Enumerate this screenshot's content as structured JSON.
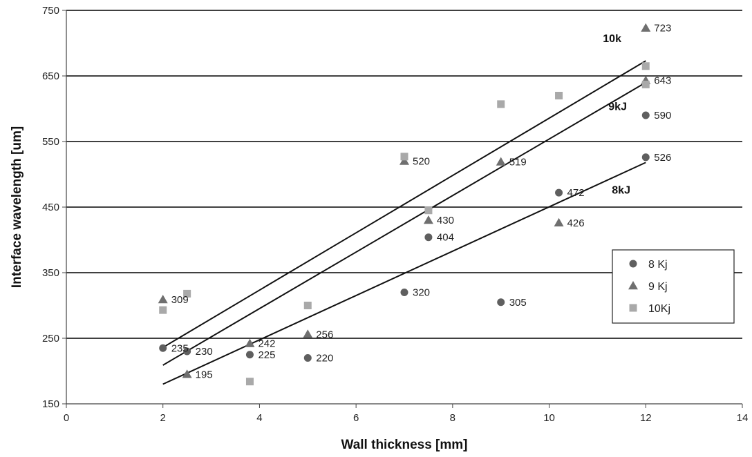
{
  "chart_data": {
    "type": "scatter",
    "xlabel": "Wall thickness [mm]",
    "ylabel": "Interface wavelength [um]",
    "xlim": [
      0,
      14
    ],
    "ylim": [
      150,
      750
    ],
    "xticks": [
      "0",
      "2",
      "4",
      "6",
      "8",
      "10",
      "12",
      "14"
    ],
    "yticks": [
      "150",
      "250",
      "350",
      "450",
      "550",
      "650",
      "750"
    ],
    "grid": "horizontal",
    "legend": {
      "position": "right",
      "entries": [
        "8 Kj",
        "9 Kj",
        "10Kj"
      ]
    },
    "series": [
      {
        "name": "8 Kj",
        "marker": "circle",
        "color": "#5f5f5f",
        "points": [
          {
            "x": 2,
            "y": 235,
            "label": "235"
          },
          {
            "x": 2.5,
            "y": 230,
            "label": "230"
          },
          {
            "x": 3.8,
            "y": 225,
            "label": "225"
          },
          {
            "x": 5,
            "y": 220,
            "label": "220"
          },
          {
            "x": 7,
            "y": 320,
            "label": "320"
          },
          {
            "x": 7.5,
            "y": 404,
            "label": "404"
          },
          {
            "x": 9,
            "y": 305,
            "label": "305"
          },
          {
            "x": 10.2,
            "y": 472,
            "label": "472"
          },
          {
            "x": 12,
            "y": 526,
            "label": "526"
          },
          {
            "x": 12,
            "y": 590,
            "label": "590"
          }
        ]
      },
      {
        "name": "9 Kj",
        "marker": "triangle",
        "color": "#6f6f6f",
        "points": [
          {
            "x": 2,
            "y": 309,
            "label": "309"
          },
          {
            "x": 2.5,
            "y": 195,
            "label": "195"
          },
          {
            "x": 3.8,
            "y": 242,
            "label": "242"
          },
          {
            "x": 5,
            "y": 256,
            "label": "256"
          },
          {
            "x": 7,
            "y": 520,
            "label": "520"
          },
          {
            "x": 7.5,
            "y": 430,
            "label": "430"
          },
          {
            "x": 9,
            "y": 519,
            "label": "519"
          },
          {
            "x": 10.2,
            "y": 426,
            "label": "426"
          },
          {
            "x": 12,
            "y": 643,
            "label": "643"
          },
          {
            "x": 12,
            "y": 723,
            "label": "723"
          }
        ]
      },
      {
        "name": "10Kj",
        "marker": "square",
        "color": "#a9a9a9",
        "points": [
          {
            "x": 2,
            "y": 293
          },
          {
            "x": 2.5,
            "y": 318
          },
          {
            "x": 3.8,
            "y": 184
          },
          {
            "x": 5,
            "y": 300
          },
          {
            "x": 7,
            "y": 527
          },
          {
            "x": 7.5,
            "y": 445
          },
          {
            "x": 9,
            "y": 607
          },
          {
            "x": 10.2,
            "y": 620
          },
          {
            "x": 12,
            "y": 665
          },
          {
            "x": 12,
            "y": 637
          }
        ]
      }
    ],
    "trendlines": [
      {
        "label": "10k",
        "x": [
          2,
          12
        ],
        "y": [
          236,
          673
        ]
      },
      {
        "label": "9kJ",
        "x": [
          2,
          12
        ],
        "y": [
          209,
          640
        ]
      },
      {
        "label": "8kJ",
        "x": [
          2,
          12
        ],
        "y": [
          180,
          518
        ]
      }
    ]
  }
}
